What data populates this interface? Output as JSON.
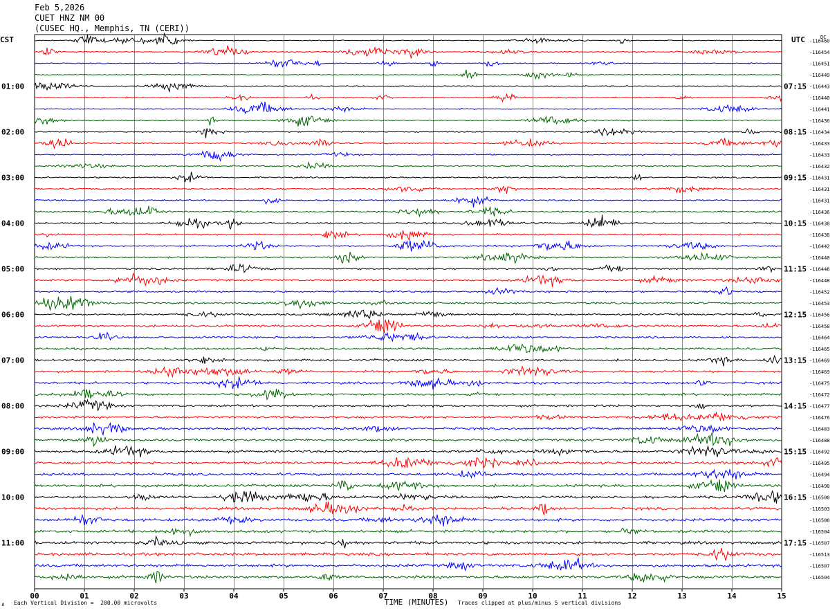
{
  "header": {
    "date": "Feb 5,2026",
    "station": "CUET HNZ NM 00",
    "location": "(CUSEC HQ., Memphis, TN (CERI))"
  },
  "left_tz": "CST",
  "right_tz": "UTC",
  "dc_header": "DC",
  "footer": {
    "scale_note": "Each Vertical Division =  200.00 microvolts",
    "clip_note": "Traces clipped at plus/minus 5 vertical divisions",
    "corner_mark": "∧"
  },
  "chart_data": {
    "type": "line",
    "title": "",
    "xlabel": "TIME (MINUTES)",
    "ylabel": "",
    "xlim": [
      0,
      15
    ],
    "x_ticks": [
      "00",
      "01",
      "02",
      "03",
      "04",
      "05",
      "06",
      "07",
      "08",
      "09",
      "10",
      "11",
      "12",
      "13",
      "14",
      "15"
    ],
    "grid": true,
    "trace_colors": [
      "#000000",
      "#ff0000",
      "#0000ff",
      "#006600"
    ],
    "left_time_labels": [
      "01:00",
      "02:00",
      "03:00",
      "04:00",
      "05:00",
      "06:00",
      "07:00",
      "08:00",
      "09:00",
      "10:00",
      "11:00"
    ],
    "right_time_labels": [
      "07:15",
      "08:15",
      "09:15",
      "10:15",
      "11:15",
      "12:15",
      "13:15",
      "14:15",
      "15:15",
      "16:15",
      "17:15"
    ],
    "trace_dc_values": [
      "-116460",
      "-116454",
      "-116451",
      "-116449",
      "-116443",
      "-116440",
      "-116441",
      "-116436",
      "-116434",
      "-116433",
      "-116433",
      "-116432",
      "-116431",
      "-116431",
      "-116431",
      "-116436",
      "-116438",
      "-116436",
      "-116442",
      "-116440",
      "-116446",
      "-116448",
      "-116452",
      "-116453",
      "-116456",
      "-116458",
      "-116464",
      "-116465",
      "-116469",
      "-116469",
      "-116475",
      "-116472",
      "-116477",
      "-116476",
      "-116483",
      "-116488",
      "-116492",
      "-116495",
      "-116494",
      "-116498",
      "-116500",
      "-116503",
      "-116508",
      "-116504",
      "-116507",
      "-116513",
      "-116507",
      "-116504"
    ]
  }
}
